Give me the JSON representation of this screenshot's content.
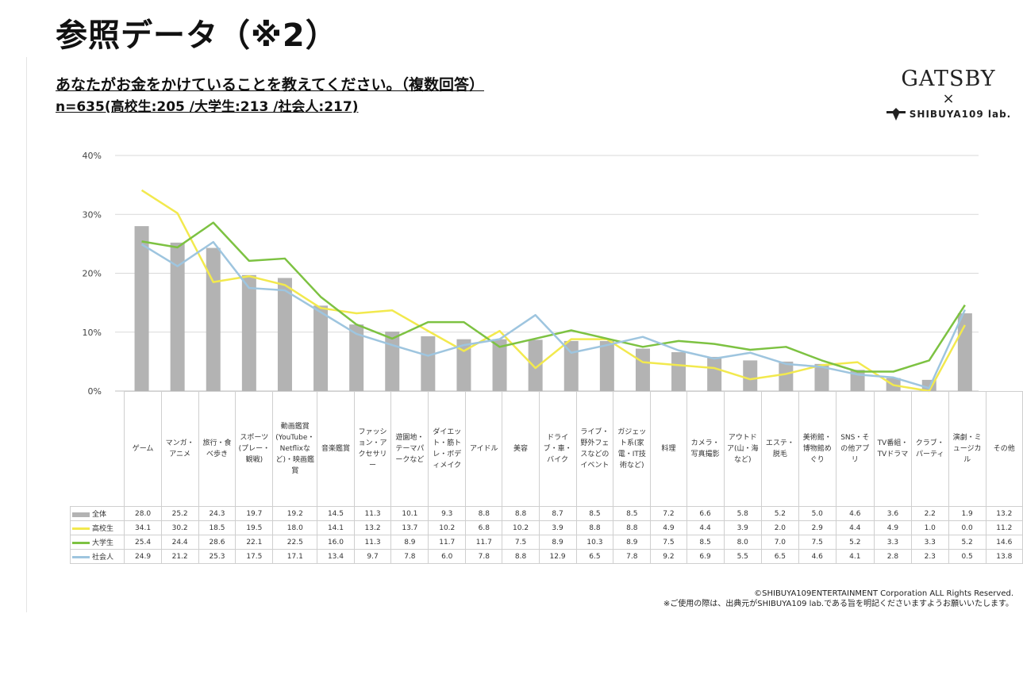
{
  "page": {
    "title": "参照データ（※2）",
    "question": "あなたがお金をかけていることを教えてください。（複数回答）",
    "sample": "n=635(高校生:205 /大学生:213 /社会人:217)"
  },
  "logo": {
    "gatsby": "GATSBY",
    "x": "×",
    "shibuya": "SHIBUYA109 lab."
  },
  "footer": {
    "line1": "©SHIBUYA109ENTERTAINMENT Corporation ALL Rights Reserved.",
    "line2": "※ご使用の際は、出典元がSHIBUYA109 lab.である旨を明記くださいますようお願いいたします。"
  },
  "colors": {
    "all": "#b3b3b3",
    "high_school": "#f2e94e",
    "university": "#7dc242",
    "working": "#9ec5df",
    "grid": "#d9d9d9"
  },
  "chart_data": {
    "type": "bar",
    "ylim": [
      0,
      40
    ],
    "yticks": [
      "0%",
      "10%",
      "20%",
      "30%",
      "40%"
    ],
    "categories": [
      "ゲーム",
      "マンガ・アニメ",
      "旅行・食べ歩き",
      "スポーツ(プレー・観戦)",
      "動画鑑賞(YouTube・Netflixなど)・映画鑑賞",
      "音楽鑑賞",
      "ファッション・アクセサリー",
      "遊園地・テーマパークなど",
      "ダイエット・筋トレ・ボディメイク",
      "アイドル",
      "美容",
      "ドライブ・車・バイク",
      "ライブ・野外フェスなどのイベント",
      "ガジェット系(家電・IT技術など)",
      "料理",
      "カメラ・写真撮影",
      "アウトドア(山・海など)",
      "エステ・脱毛",
      "美術館・博物館めぐり",
      "SNS・その他アプリ",
      "TV番組・TVドラマ",
      "クラブ・パーティ",
      "演劇・ミュージカル",
      "その他"
    ],
    "series": [
      {
        "name": "全体",
        "type": "bar",
        "values": [
          28.0,
          25.2,
          24.3,
          19.7,
          19.2,
          14.5,
          11.3,
          10.1,
          9.3,
          8.8,
          8.8,
          8.7,
          8.5,
          8.5,
          7.2,
          6.6,
          5.8,
          5.2,
          5.0,
          4.6,
          3.6,
          2.2,
          1.9,
          13.2
        ]
      },
      {
        "name": "高校生",
        "type": "line",
        "values": [
          34.1,
          30.2,
          18.5,
          19.5,
          18.0,
          14.1,
          13.2,
          13.7,
          10.2,
          6.8,
          10.2,
          3.9,
          8.8,
          8.8,
          4.9,
          4.4,
          3.9,
          2.0,
          2.9,
          4.4,
          4.9,
          1.0,
          0.0,
          11.2
        ]
      },
      {
        "name": "大学生",
        "type": "line",
        "values": [
          25.4,
          24.4,
          28.6,
          22.1,
          22.5,
          16.0,
          11.3,
          8.9,
          11.7,
          11.7,
          7.5,
          8.9,
          10.3,
          8.9,
          7.5,
          8.5,
          8.0,
          7.0,
          7.5,
          5.2,
          3.3,
          3.3,
          5.2,
          14.6
        ]
      },
      {
        "name": "社会人",
        "type": "line",
        "values": [
          24.9,
          21.2,
          25.3,
          17.5,
          17.1,
          13.4,
          9.7,
          7.8,
          6.0,
          7.8,
          8.8,
          12.9,
          6.5,
          7.8,
          9.2,
          6.9,
          5.5,
          6.5,
          4.6,
          4.1,
          2.8,
          2.3,
          0.5,
          13.8
        ]
      }
    ],
    "table_values": [
      [
        "28.0",
        "25.2",
        "24.3",
        "19.7",
        "19.2",
        "14.5",
        "11.3",
        "10.1",
        "9.3",
        "8.8",
        "8.8",
        "8.7",
        "8.5",
        "8.5",
        "7.2",
        "6.6",
        "5.8",
        "5.2",
        "5.0",
        "4.6",
        "3.6",
        "2.2",
        "1.9",
        "13.2"
      ],
      [
        "34.1",
        "30.2",
        "18.5",
        "19.5",
        "18.0",
        "14.1",
        "13.2",
        "13.7",
        "10.2",
        "6.8",
        "10.2",
        "3.9",
        "8.8",
        "8.8",
        "4.9",
        "4.4",
        "3.9",
        "2.0",
        "2.9",
        "4.4",
        "4.9",
        "1.0",
        "0.0",
        "11.2"
      ],
      [
        "25.4",
        "24.4",
        "28.6",
        "22.1",
        "22.5",
        "16.0",
        "11.3",
        "8.9",
        "11.7",
        "11.7",
        "7.5",
        "8.9",
        "10.3",
        "8.9",
        "7.5",
        "8.5",
        "8.0",
        "7.0",
        "7.5",
        "5.2",
        "3.3",
        "3.3",
        "5.2",
        "14.6"
      ],
      [
        "24.9",
        "21.2",
        "25.3",
        "17.5",
        "17.1",
        "13.4",
        "9.7",
        "7.8",
        "6.0",
        "7.8",
        "8.8",
        "12.9",
        "6.5",
        "7.8",
        "9.2",
        "6.9",
        "5.5",
        "6.5",
        "4.6",
        "4.1",
        "2.8",
        "2.3",
        "0.5",
        "13.8"
      ]
    ],
    "legend_placement": "table-left",
    "grid": true
  }
}
